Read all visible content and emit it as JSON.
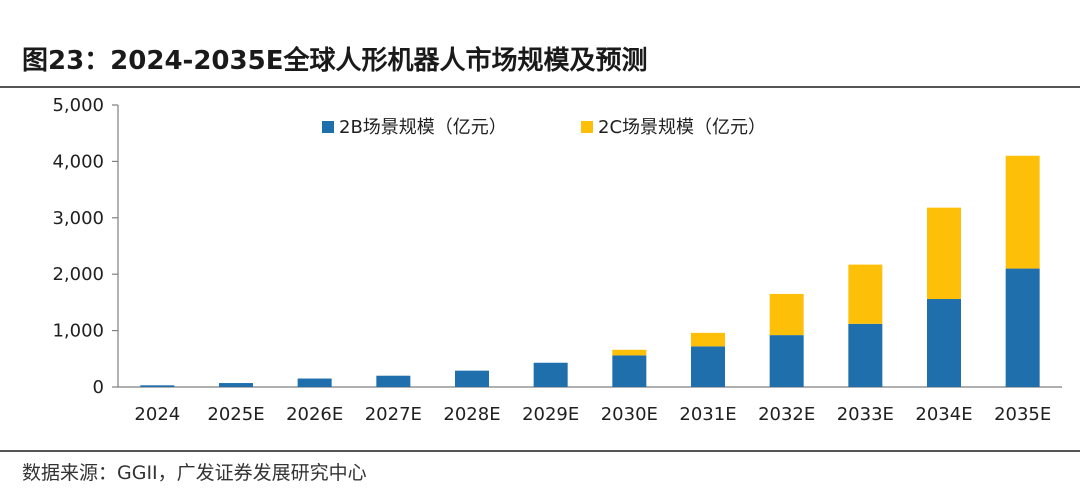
{
  "figure": {
    "title": "图23：2024-2035E全球人形机器人市场规模及预测",
    "source": "数据来源：GGII，广发证券发展研究中心"
  },
  "chart_data": {
    "type": "bar",
    "stacked": true,
    "categories": [
      "2024",
      "2025E",
      "2026E",
      "2027E",
      "2028E",
      "2029E",
      "2030E",
      "2031E",
      "2032E",
      "2033E",
      "2034E",
      "2035E"
    ],
    "series": [
      {
        "name": "2B场景规模（亿元）",
        "color": "#1f6fad",
        "values": [
          30,
          70,
          150,
          200,
          290,
          430,
          560,
          720,
          920,
          1120,
          1560,
          2100
        ]
      },
      {
        "name": "2C场景规模（亿元）",
        "color": "#fdbf08",
        "values": [
          0,
          0,
          0,
          0,
          0,
          0,
          100,
          240,
          730,
          1050,
          1620,
          2000
        ]
      }
    ],
    "ylim": [
      0,
      5000
    ],
    "yticks": [
      0,
      1000,
      2000,
      3000,
      4000,
      5000
    ],
    "ytick_labels": [
      "0",
      "1,000",
      "2,000",
      "3,000",
      "4,000",
      "5,000"
    ],
    "grid": false,
    "legend_position": "top"
  }
}
